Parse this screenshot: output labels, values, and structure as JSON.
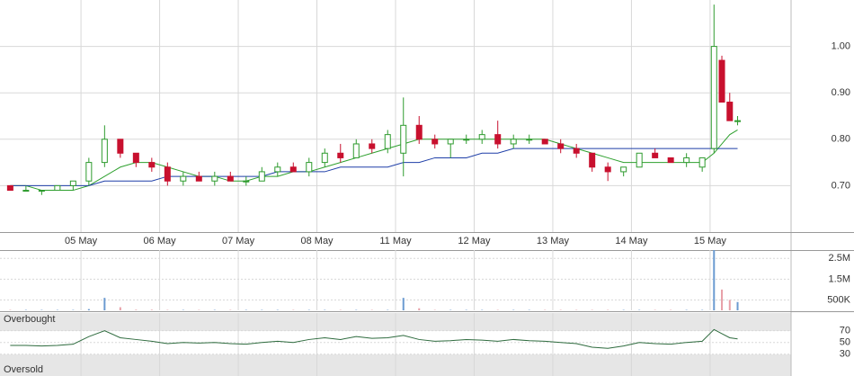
{
  "chart_data": [
    {
      "type": "candlestick",
      "x": [
        0.1,
        0.3,
        0.5,
        0.7,
        0.9,
        1.1,
        1.3,
        1.5,
        1.7,
        1.9,
        2.1,
        2.3,
        2.5,
        2.7,
        2.9,
        3.1,
        3.3,
        3.5,
        3.7,
        3.9,
        4.1,
        4.3,
        4.5,
        4.7,
        4.9,
        5.1,
        5.3,
        5.5,
        5.7,
        5.9,
        6.1,
        6.3,
        6.5,
        6.7,
        6.9,
        7.1,
        7.3,
        7.5,
        7.7,
        7.9,
        8.1,
        8.3,
        8.5,
        8.7,
        8.9,
        9.05,
        9.15,
        9.25,
        9.35
      ],
      "open": [
        0.7,
        0.69,
        0.69,
        0.69,
        0.7,
        0.71,
        0.75,
        0.8,
        0.77,
        0.75,
        0.74,
        0.71,
        0.72,
        0.71,
        0.72,
        0.71,
        0.71,
        0.73,
        0.74,
        0.73,
        0.75,
        0.77,
        0.76,
        0.79,
        0.78,
        0.77,
        0.83,
        0.8,
        0.79,
        0.8,
        0.8,
        0.81,
        0.79,
        0.8,
        0.8,
        0.79,
        0.78,
        0.77,
        0.74,
        0.73,
        0.74,
        0.77,
        0.76,
        0.75,
        0.74,
        0.78,
        0.97,
        0.88,
        0.84
      ],
      "high": [
        0.7,
        0.7,
        0.69,
        0.7,
        0.71,
        0.76,
        0.83,
        0.8,
        0.77,
        0.76,
        0.75,
        0.73,
        0.73,
        0.73,
        0.73,
        0.72,
        0.74,
        0.75,
        0.75,
        0.76,
        0.78,
        0.79,
        0.8,
        0.8,
        0.82,
        0.89,
        0.85,
        0.81,
        0.8,
        0.81,
        0.82,
        0.84,
        0.81,
        0.81,
        0.8,
        0.8,
        0.79,
        0.77,
        0.75,
        0.74,
        0.77,
        0.78,
        0.76,
        0.77,
        0.76,
        1.09,
        0.98,
        0.9,
        0.85
      ],
      "low": [
        0.69,
        0.69,
        0.68,
        0.69,
        0.69,
        0.7,
        0.74,
        0.76,
        0.74,
        0.73,
        0.7,
        0.7,
        0.71,
        0.7,
        0.71,
        0.7,
        0.71,
        0.72,
        0.73,
        0.72,
        0.74,
        0.75,
        0.76,
        0.77,
        0.77,
        0.72,
        0.79,
        0.78,
        0.76,
        0.79,
        0.79,
        0.78,
        0.78,
        0.79,
        0.79,
        0.77,
        0.76,
        0.73,
        0.71,
        0.72,
        0.74,
        0.76,
        0.75,
        0.74,
        0.73,
        0.77,
        0.88,
        0.84,
        0.83
      ],
      "close": [
        0.69,
        0.69,
        0.69,
        0.7,
        0.71,
        0.75,
        0.8,
        0.77,
        0.75,
        0.74,
        0.71,
        0.72,
        0.71,
        0.72,
        0.71,
        0.71,
        0.73,
        0.74,
        0.73,
        0.75,
        0.77,
        0.76,
        0.79,
        0.78,
        0.81,
        0.83,
        0.8,
        0.79,
        0.8,
        0.8,
        0.81,
        0.79,
        0.8,
        0.8,
        0.79,
        0.78,
        0.77,
        0.74,
        0.73,
        0.74,
        0.77,
        0.76,
        0.75,
        0.76,
        0.76,
        1.0,
        0.88,
        0.84,
        0.84
      ],
      "up_color": "#2e9b2e",
      "down_color": "#c8102e",
      "series": [
        {
          "color": "#2ea02e",
          "values": [
            0.7,
            0.7,
            0.69,
            0.69,
            0.69,
            0.7,
            0.72,
            0.74,
            0.75,
            0.75,
            0.74,
            0.73,
            0.72,
            0.72,
            0.71,
            0.71,
            0.72,
            0.72,
            0.73,
            0.73,
            0.74,
            0.75,
            0.76,
            0.77,
            0.78,
            0.79,
            0.8,
            0.8,
            0.8,
            0.8,
            0.8,
            0.8,
            0.8,
            0.8,
            0.8,
            0.79,
            0.78,
            0.77,
            0.76,
            0.75,
            0.75,
            0.75,
            0.75,
            0.75,
            0.75,
            0.77,
            0.79,
            0.81,
            0.82
          ]
        },
        {
          "color": "#1f3fa8",
          "values": [
            0.7,
            0.7,
            0.7,
            0.7,
            0.7,
            0.7,
            0.71,
            0.71,
            0.71,
            0.71,
            0.72,
            0.72,
            0.72,
            0.72,
            0.72,
            0.72,
            0.72,
            0.73,
            0.73,
            0.73,
            0.73,
            0.74,
            0.74,
            0.74,
            0.74,
            0.75,
            0.75,
            0.76,
            0.76,
            0.76,
            0.77,
            0.77,
            0.78,
            0.78,
            0.78,
            0.78,
            0.78,
            0.78,
            0.78,
            0.78,
            0.78,
            0.78,
            0.78,
            0.78,
            0.78,
            0.78,
            0.78,
            0.78,
            0.78
          ]
        }
      ],
      "xlim": [
        -0.03,
        10.03
      ],
      "xticks": [
        {
          "value": 1,
          "label": "05 May"
        },
        {
          "value": 2,
          "label": "06 May"
        },
        {
          "value": 3,
          "label": "07 May"
        },
        {
          "value": 4,
          "label": "08 May"
        },
        {
          "value": 5,
          "label": "11 May"
        },
        {
          "value": 6,
          "label": "12 May"
        },
        {
          "value": 7,
          "label": "13 May"
        },
        {
          "value": 8,
          "label": "14 May"
        },
        {
          "value": 9,
          "label": "15 May"
        }
      ],
      "ylim": [
        0.6,
        1.1
      ],
      "yticks": [
        {
          "value": 0.7,
          "label": "0.70"
        },
        {
          "value": 0.8,
          "label": "0.80"
        },
        {
          "value": 0.9,
          "label": "0.90"
        },
        {
          "value": 1,
          "label": "1.00"
        }
      ],
      "grid": true
    },
    {
      "type": "bar",
      "x": [
        0.1,
        0.3,
        0.5,
        0.7,
        0.9,
        1.1,
        1.3,
        1.5,
        1.7,
        1.9,
        2.1,
        2.3,
        2.5,
        2.7,
        2.9,
        3.1,
        3.3,
        3.5,
        3.7,
        3.9,
        4.1,
        4.3,
        4.5,
        4.7,
        4.9,
        5.1,
        5.3,
        5.5,
        5.7,
        5.9,
        6.1,
        6.3,
        6.5,
        6.7,
        6.9,
        7.1,
        7.3,
        7.5,
        7.7,
        7.9,
        8.1,
        8.3,
        8.5,
        8.7,
        8.9,
        9.05,
        9.15,
        9.25,
        9.35
      ],
      "values": [
        20000,
        20000,
        20000,
        20000,
        20000,
        60000,
        600000,
        150000,
        30000,
        30000,
        20000,
        20000,
        20000,
        20000,
        20000,
        20000,
        20000,
        20000,
        20000,
        20000,
        20000,
        20000,
        20000,
        20000,
        20000,
        600000,
        100000,
        20000,
        20000,
        20000,
        20000,
        20000,
        20000,
        20000,
        20000,
        20000,
        20000,
        20000,
        20000,
        20000,
        20000,
        20000,
        20000,
        20000,
        20000,
        2900000,
        1000000,
        500000,
        400000
      ],
      "up_color": "#6b9bd1",
      "down_color": "#e8a0a8",
      "xlim": [
        -0.03,
        10.03
      ],
      "ylim": [
        0,
        2900000
      ],
      "yticks": [
        {
          "value": 500000,
          "label": "500K"
        },
        {
          "value": 1500000,
          "label": "1.5M"
        },
        {
          "value": 2500000,
          "label": "2.5M"
        }
      ],
      "grid": true
    },
    {
      "type": "line",
      "x": [
        0.1,
        0.3,
        0.5,
        0.7,
        0.9,
        1.1,
        1.3,
        1.5,
        1.7,
        1.9,
        2.1,
        2.3,
        2.5,
        2.7,
        2.9,
        3.1,
        3.3,
        3.5,
        3.7,
        3.9,
        4.1,
        4.3,
        4.5,
        4.7,
        4.9,
        5.1,
        5.3,
        5.5,
        5.7,
        5.9,
        6.1,
        6.3,
        6.5,
        6.7,
        6.9,
        7.1,
        7.3,
        7.5,
        7.7,
        7.9,
        8.1,
        8.3,
        8.5,
        8.7,
        8.9,
        9.05,
        9.15,
        9.25,
        9.35
      ],
      "values": [
        45,
        45,
        44,
        45,
        47,
        60,
        70,
        58,
        55,
        52,
        48,
        50,
        49,
        50,
        48,
        47,
        50,
        52,
        50,
        55,
        58,
        55,
        60,
        57,
        58,
        62,
        55,
        52,
        53,
        55,
        54,
        52,
        55,
        53,
        52,
        50,
        48,
        42,
        40,
        44,
        50,
        48,
        47,
        50,
        52,
        72,
        65,
        58,
        56
      ],
      "color": "#2e6b3e",
      "annotations": [
        "Overbought",
        "Oversold"
      ],
      "xlim": [
        -0.03,
        10.03
      ],
      "ylim": [
        -7,
        100
      ],
      "yticks": [
        30,
        50,
        70
      ],
      "grid": true
    }
  ]
}
